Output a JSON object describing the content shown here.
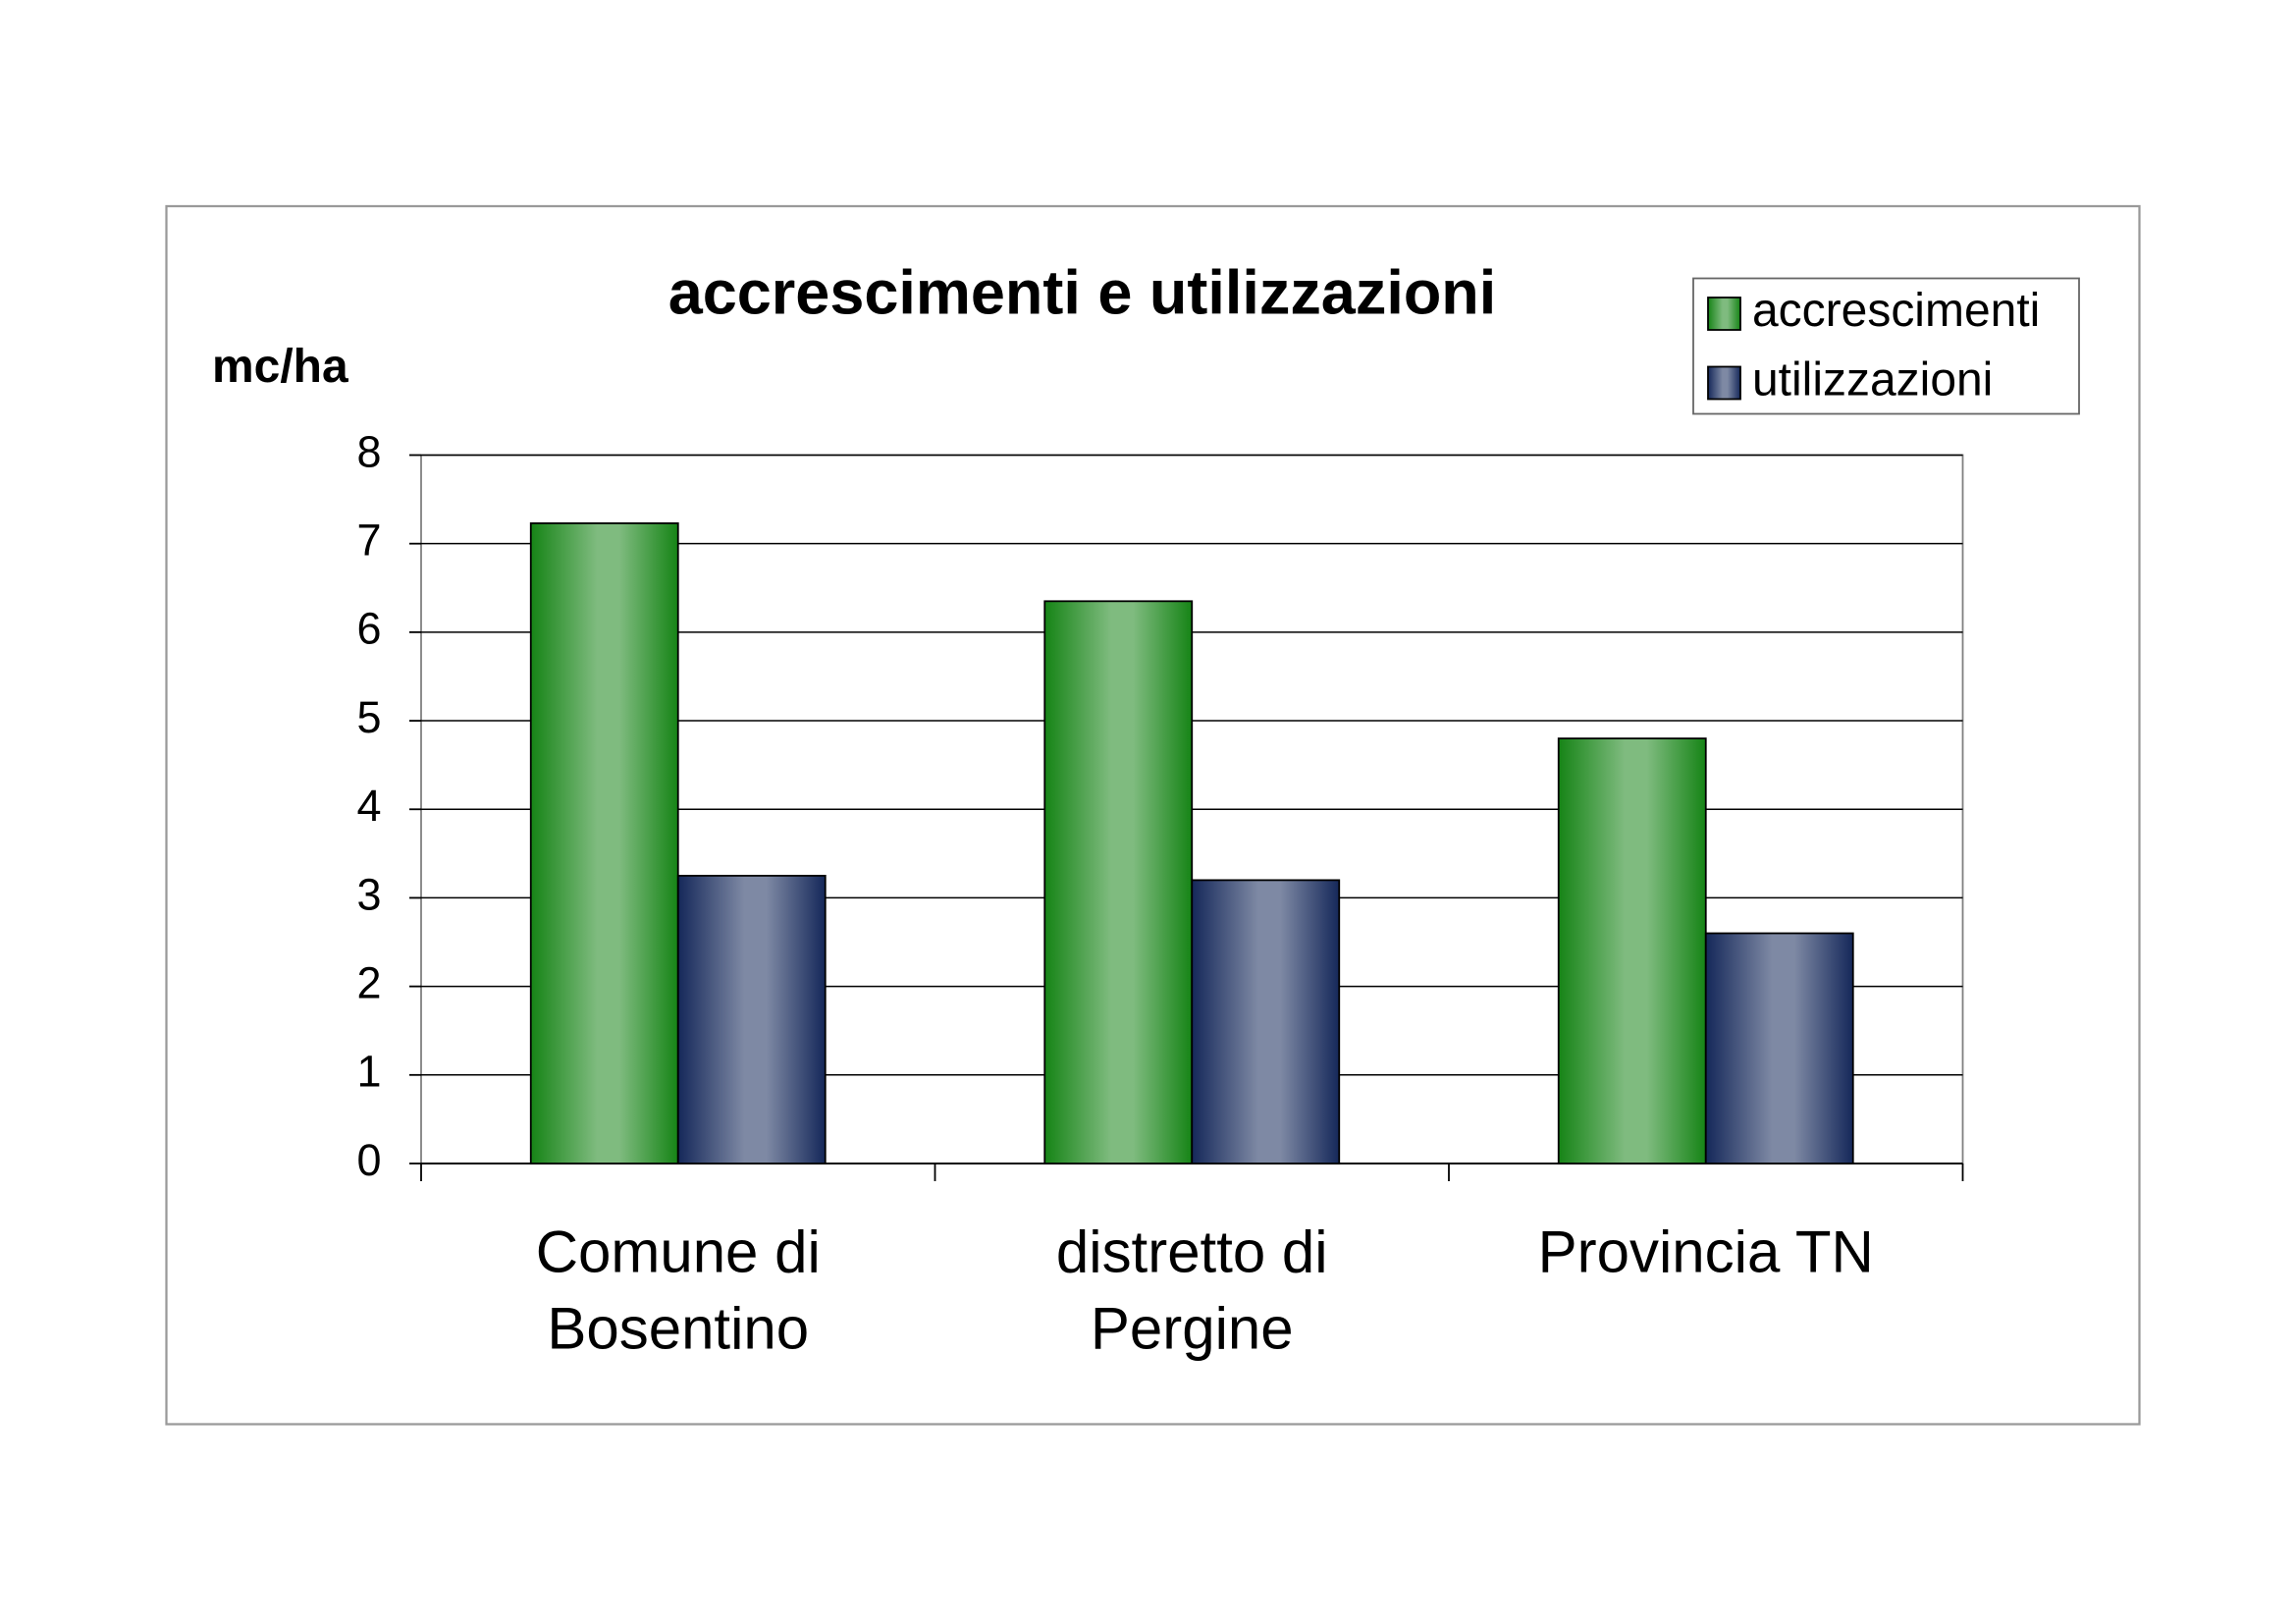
{
  "chart_data": {
    "type": "bar",
    "title": "accrescimenti e utilizzazioni",
    "y_label": "mc/ha",
    "categories": [
      "Comune di Bosentino",
      "distretto di Pergine",
      "Provincia TN"
    ],
    "series": [
      {
        "name": "accrescimenti",
        "color": "#168416",
        "values": [
          7.23,
          6.35,
          4.8
        ]
      },
      {
        "name": "utilizzazioni",
        "color": "#15285a",
        "values": [
          3.25,
          3.2,
          2.6
        ]
      }
    ],
    "ylim": [
      0,
      8
    ],
    "yticks": [
      0,
      1,
      2,
      3,
      4,
      5,
      6,
      7,
      8
    ],
    "grid": true,
    "legend": "top-right"
  }
}
